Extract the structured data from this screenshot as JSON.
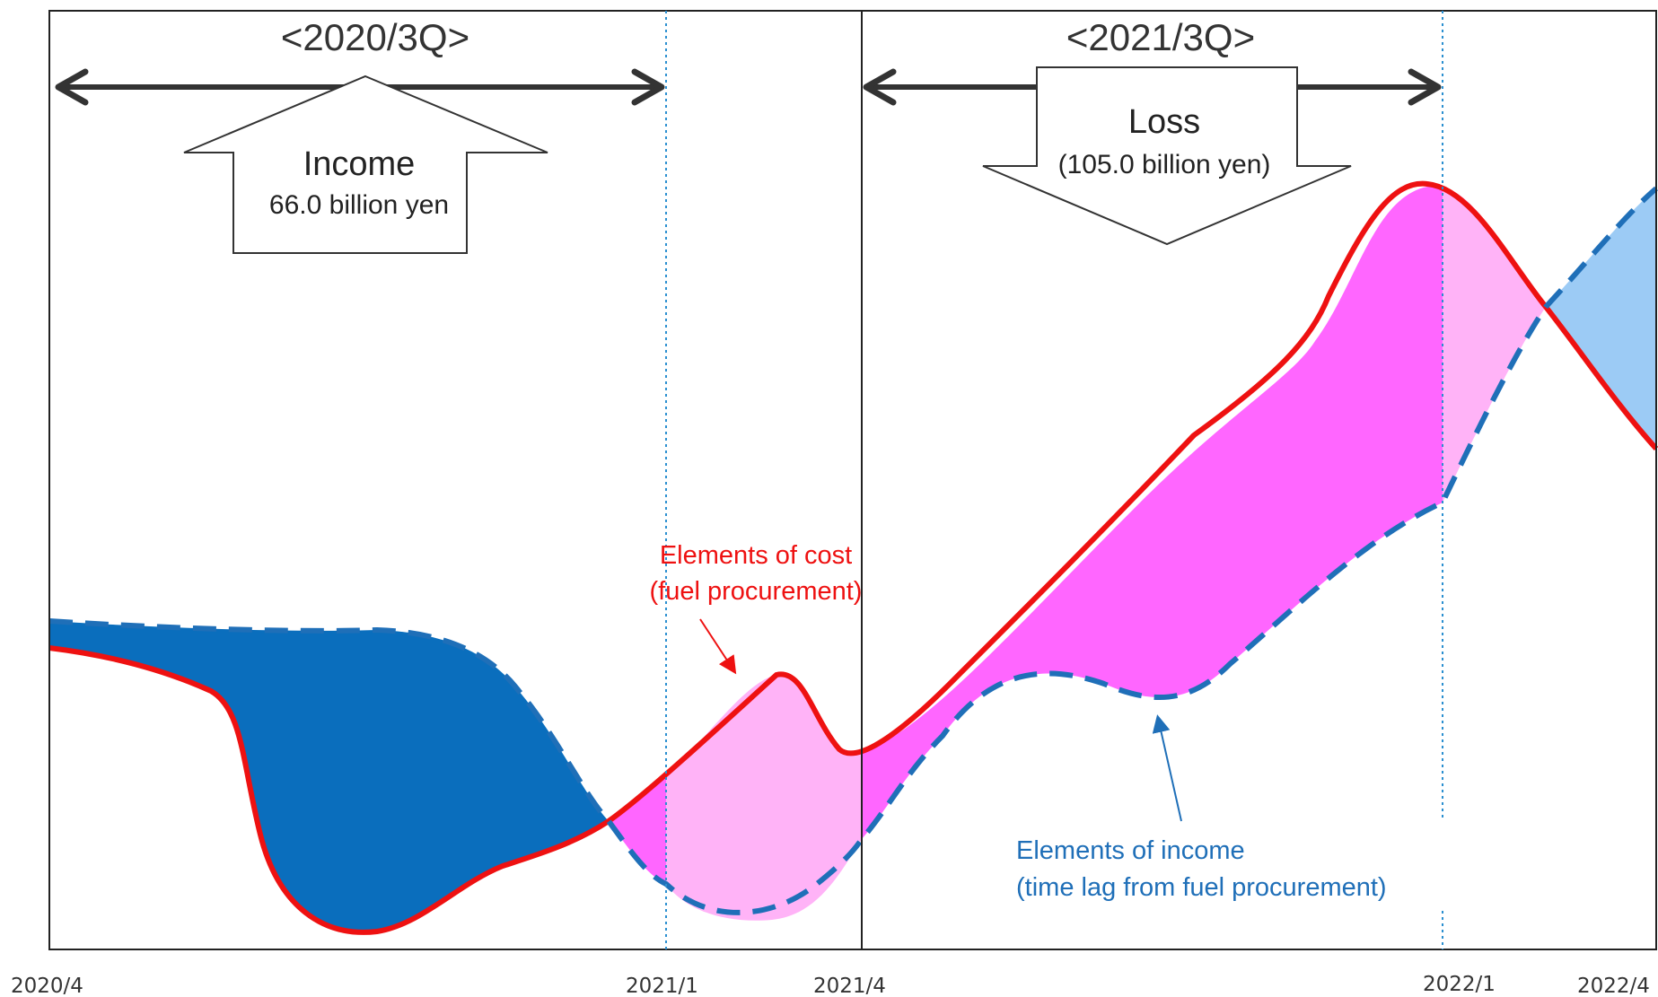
{
  "periods": [
    {
      "label": "<2020/3Q>",
      "callout_title": "Income",
      "callout_value": "66.0 billion yen"
    },
    {
      "label": "<2021/3Q>",
      "callout_title": "Loss",
      "callout_value": "(105.0 billion yen)"
    }
  ],
  "annotations": {
    "cost_line_1": "Elements of cost",
    "cost_line_2": "(fuel procurement)",
    "income_line_1": "Elements of income",
    "income_line_2": "(time lag from fuel procurement)"
  },
  "x_ticks": [
    "2020/4",
    "2021/1",
    "2021/4",
    "2022/1",
    "2022/4"
  ],
  "colors": {
    "cost_line": "#ee1111",
    "income_line": "#1f6fb8",
    "gain_fill": "#0a6ebd",
    "loss_fill": "#ff66ff",
    "light_loss_fill": "#ffb3f7",
    "light_gain_fill": "#9ccbf5",
    "cost_text": "#ee1111",
    "income_text": "#1f6fb8"
  }
}
